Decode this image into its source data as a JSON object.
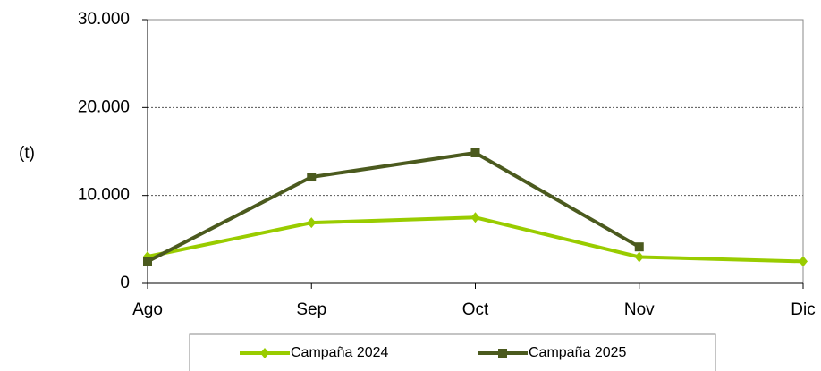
{
  "chart_data": {
    "type": "line",
    "y_label": "(t)",
    "categories": [
      "Ago",
      "Sep",
      "Oct",
      "Nov",
      "Dic"
    ],
    "series": [
      {
        "name": "Campaña 2024",
        "color": "#99cc00",
        "marker": "diamond",
        "values": [
          3050,
          6900,
          7500,
          3000,
          2500
        ]
      },
      {
        "name": "Campaña 2025",
        "color": "#4b5a1e",
        "marker": "square",
        "values": [
          2500,
          12100,
          14850,
          4150,
          null
        ]
      }
    ],
    "ylim": [
      0,
      30000
    ],
    "yticks": [
      0,
      {
        "value": 10000,
        "label": "10.000"
      },
      {
        "value": 20000,
        "label": "20.000"
      },
      {
        "value": 30000,
        "label": "30.000"
      }
    ],
    "grid": true,
    "legend": "bottom"
  }
}
